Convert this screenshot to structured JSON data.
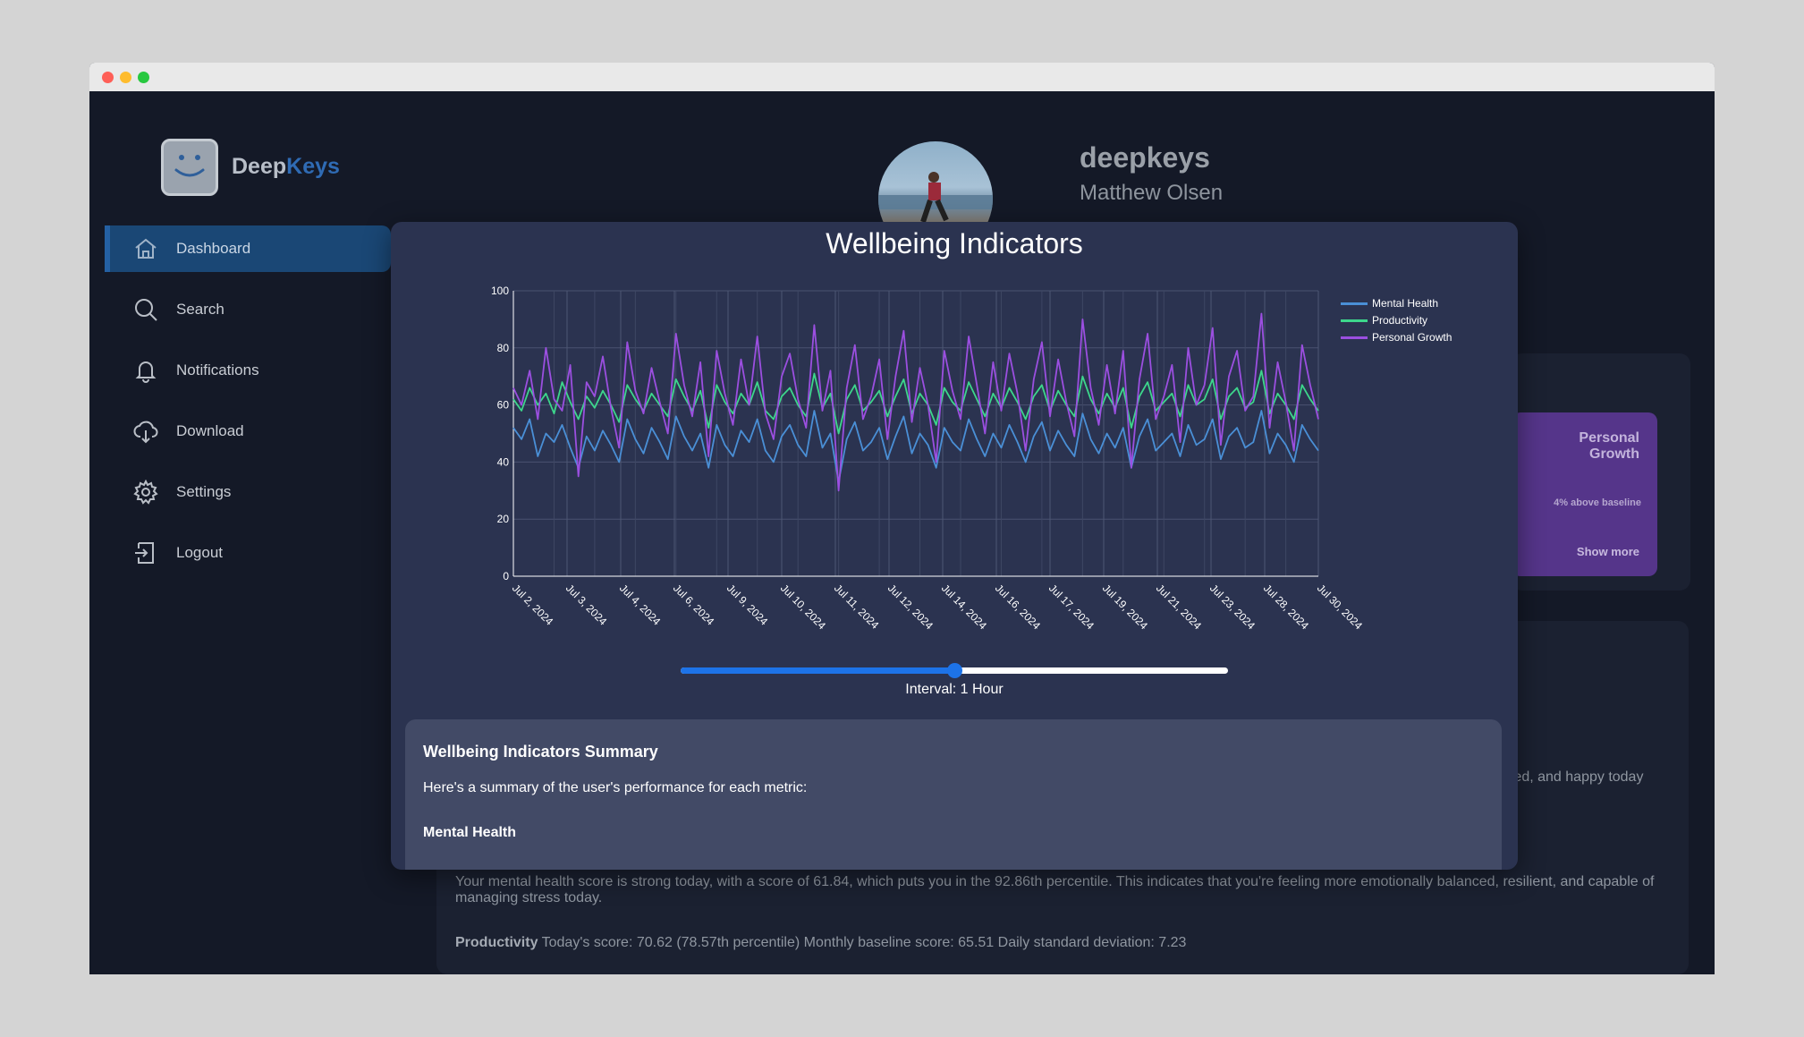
{
  "app": {
    "brand_prefix": "Deep",
    "brand_suffix": "Keys"
  },
  "sidebar": {
    "items": [
      {
        "label": "Dashboard",
        "icon": "home-icon",
        "active": true
      },
      {
        "label": "Search",
        "icon": "search-icon",
        "active": false
      },
      {
        "label": "Notifications",
        "icon": "bell-icon",
        "active": false
      },
      {
        "label": "Download",
        "icon": "cloud-download-icon",
        "active": false
      },
      {
        "label": "Settings",
        "icon": "gear-icon",
        "active": false
      },
      {
        "label": "Logout",
        "icon": "logout-icon",
        "active": false
      }
    ]
  },
  "profile": {
    "username": "deepkeys",
    "full_name": "Matthew Olsen"
  },
  "background": {
    "growth_card": {
      "title": "Personal Growth",
      "subtitle": "4% above baseline",
      "more": "Show more"
    },
    "partial_text": "ted, and happy today",
    "mental_paragraph": "Your mental health score is strong today, with a score of 61.84, which puts you in the 92.86th percentile. This indicates that you're feeling more emotionally balanced, resilient, and capable of managing stress today.",
    "productivity_label": "Productivity",
    "productivity_text": " Today's score: 70.62 (78.57th percentile) Monthly baseline score: 65.51 Daily standard deviation: 7.23"
  },
  "modal": {
    "title": "Wellbeing Indicators",
    "interval_label": "Interval: 1 Hour",
    "slider_fraction": 0.5,
    "summary": {
      "title": "Wellbeing Indicators Summary",
      "intro": "Here's a summary of the user's performance for each metric:",
      "mental_health_heading": "Mental Health"
    }
  },
  "colors": {
    "mental_health": "#4a8fd6",
    "productivity": "#3dd68c",
    "personal_growth": "#9b4fe0",
    "accent": "#1d73e8"
  },
  "chart_data": {
    "type": "line",
    "ylim": [
      0,
      100
    ],
    "y_ticks": [
      0,
      20,
      40,
      60,
      80,
      100
    ],
    "x_tick_labels": [
      "Jul 2, 2024",
      "Jul 3, 2024",
      "Jul 4, 2024",
      "Jul 6, 2024",
      "Jul 9, 2024",
      "Jul 10, 2024",
      "Jul 11, 2024",
      "Jul 12, 2024",
      "Jul 14, 2024",
      "Jul 16, 2024",
      "Jul 17, 2024",
      "Jul 19, 2024",
      "Jul 21, 2024",
      "Jul 23, 2024",
      "Jul 28, 2024",
      "Jul 30, 2024"
    ],
    "grid": true,
    "legend_position": "top-right",
    "series": [
      {
        "name": "Mental Health",
        "values": [
          52,
          48,
          55,
          42,
          50,
          47,
          53,
          45,
          38,
          49,
          44,
          51,
          46,
          40,
          55,
          48,
          43,
          52,
          47,
          41,
          56,
          49,
          44,
          50,
          38,
          53,
          46,
          42,
          51,
          47,
          55,
          44,
          40,
          49,
          53,
          46,
          42,
          58,
          45,
          50,
          33,
          48,
          54,
          44,
          47,
          52,
          41,
          49,
          56,
          43,
          50,
          46,
          38,
          52,
          47,
          44,
          55,
          48,
          42,
          50,
          45,
          53,
          47,
          40,
          49,
          54,
          44,
          51,
          46,
          42,
          57,
          48,
          43,
          50,
          45,
          52,
          38,
          49,
          55,
          44,
          47,
          50,
          42,
          53,
          46,
          48,
          55,
          41,
          49,
          52,
          45,
          47,
          58,
          43,
          50,
          46,
          40,
          53,
          48,
          44
        ]
      },
      {
        "name": "Productivity",
        "values": [
          62,
          58,
          66,
          60,
          64,
          57,
          68,
          61,
          55,
          63,
          59,
          65,
          60,
          54,
          67,
          62,
          58,
          64,
          60,
          56,
          69,
          63,
          58,
          65,
          52,
          67,
          61,
          57,
          64,
          60,
          68,
          58,
          55,
          63,
          66,
          60,
          56,
          71,
          59,
          64,
          50,
          62,
          67,
          58,
          61,
          65,
          56,
          63,
          69,
          57,
          64,
          60,
          53,
          66,
          61,
          58,
          68,
          62,
          56,
          64,
          59,
          66,
          61,
          55,
          63,
          67,
          58,
          65,
          60,
          56,
          70,
          62,
          57,
          64,
          59,
          66,
          52,
          63,
          68,
          58,
          61,
          64,
          56,
          67,
          60,
          62,
          69,
          55,
          63,
          66,
          59,
          61,
          72,
          57,
          64,
          60,
          55,
          67,
          62,
          58
        ]
      },
      {
        "name": "Personal Growth",
        "values": [
          66,
          60,
          72,
          55,
          80,
          62,
          58,
          74,
          35,
          68,
          63,
          77,
          59,
          45,
          82,
          65,
          57,
          73,
          61,
          50,
          85,
          67,
          56,
          75,
          42,
          79,
          64,
          53,
          76,
          60,
          84,
          57,
          48,
          70,
          78,
          62,
          52,
          88,
          58,
          72,
          30,
          66,
          81,
          55,
          63,
          76,
          48,
          70,
          86,
          54,
          73,
          60,
          40,
          79,
          65,
          55,
          84,
          67,
          50,
          75,
          58,
          78,
          64,
          44,
          69,
          82,
          56,
          76,
          61,
          49,
          90,
          66,
          53,
          74,
          57,
          79,
          38,
          69,
          85,
          55,
          63,
          74,
          47,
          80,
          60,
          67,
          87,
          46,
          70,
          79,
          58,
          63,
          92,
          52,
          75,
          61,
          44,
          81,
          67,
          55
        ]
      }
    ]
  }
}
